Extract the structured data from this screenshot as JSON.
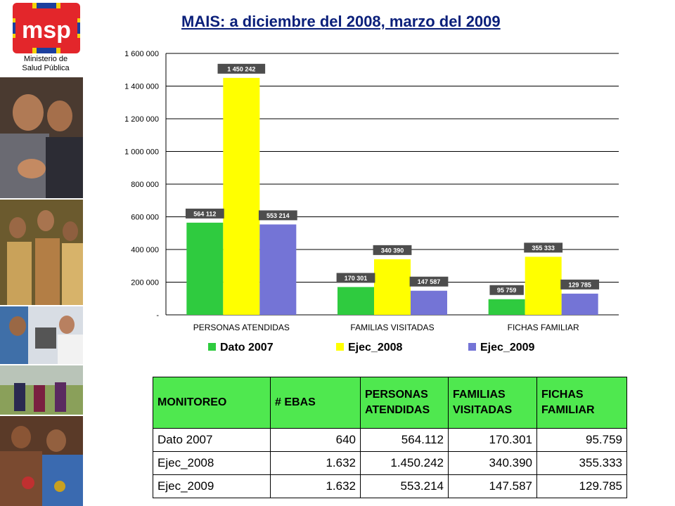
{
  "brand": {
    "logo_text": "msp",
    "caption_line1": "Ministerio de",
    "caption_line2": "Salud Pública",
    "colors": {
      "red": "#e3262b",
      "yellow": "#f4d20a",
      "blue": "#1c3f9e"
    }
  },
  "photos": [
    "family-photo",
    "community-group-photo",
    "eye-exam-photo",
    "rural-people-photo",
    "indigenous-women-photo"
  ],
  "title": "MAIS: a diciembre del 2008, marzo del 2009",
  "chart_data": {
    "type": "bar",
    "categories": [
      "PERSONAS ATENDIDAS",
      "FAMILIAS VISITADAS",
      "FICHAS FAMILIAR"
    ],
    "series": [
      {
        "name": "Dato 2007",
        "color": "#2fcb3f",
        "values": [
          564112,
          170301,
          95759
        ],
        "labels": [
          "564 112",
          "170 301",
          "95 759"
        ]
      },
      {
        "name": "Ejec_2008",
        "color": "#ffff00",
        "values": [
          1450242,
          340390,
          355333
        ],
        "labels": [
          "1 450 242",
          "340 390",
          "355 333"
        ]
      },
      {
        "name": "Ejec_2009",
        "color": "#7474d6",
        "values": [
          553214,
          147587,
          129785
        ],
        "labels": [
          "553 214",
          "147 587",
          "129 785"
        ]
      }
    ],
    "yticks": [
      {
        "value": 0,
        "label": "-"
      },
      {
        "value": 200000,
        "label": "200 000"
      },
      {
        "value": 400000,
        "label": "400 000"
      },
      {
        "value": 600000,
        "label": "600 000"
      },
      {
        "value": 800000,
        "label": "800 000"
      },
      {
        "value": 1000000,
        "label": "1 000 000"
      },
      {
        "value": 1200000,
        "label": "1 200 000"
      },
      {
        "value": 1400000,
        "label": "1 400 000"
      },
      {
        "value": 1600000,
        "label": "1 600 000"
      }
    ],
    "ylim": [
      0,
      1600000
    ],
    "grid": true,
    "legend_position": "bottom",
    "xlabel": "",
    "ylabel": ""
  },
  "table": {
    "headers": [
      "MONITOREO",
      "# EBAS",
      "PERSONAS ATENDIDAS",
      "FAMILIAS VISITADAS",
      "FICHAS FAMILIAR"
    ],
    "rows": [
      [
        "Dato 2007",
        "640",
        "564.112",
        "170.301",
        "95.759"
      ],
      [
        "Ejec_2008",
        "1.632",
        "1.450.242",
        "340.390",
        "355.333"
      ],
      [
        "Ejec_2009",
        "1.632",
        "553.214",
        "147.587",
        "129.785"
      ]
    ],
    "header_color": "#4fe84f"
  }
}
